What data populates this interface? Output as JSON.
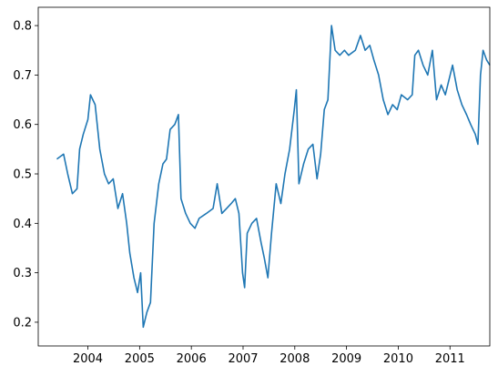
{
  "chart_data": {
    "type": "line",
    "x": [
      2003.4,
      2003.53,
      2003.61,
      2003.7,
      2003.79,
      2003.84,
      2003.91,
      2004.0,
      2004.05,
      2004.14,
      2004.23,
      2004.32,
      2004.4,
      2004.49,
      2004.58,
      2004.67,
      2004.75,
      2004.81,
      2004.89,
      2004.96,
      2005.02,
      2005.07,
      2005.14,
      2005.21,
      2005.28,
      2005.37,
      2005.45,
      2005.52,
      2005.59,
      2005.68,
      2005.75,
      2005.8,
      2005.89,
      2005.98,
      2006.07,
      2006.15,
      2006.29,
      2006.42,
      2006.5,
      2006.59,
      2006.68,
      2006.77,
      2006.85,
      2006.92,
      2006.99,
      2007.03,
      2007.08,
      2007.17,
      2007.26,
      2007.35,
      2007.41,
      2007.48,
      2007.55,
      2007.64,
      2007.73,
      2007.81,
      2007.9,
      2007.99,
      2008.03,
      2008.08,
      2008.17,
      2008.26,
      2008.35,
      2008.43,
      2008.5,
      2008.57,
      2008.64,
      2008.71,
      2008.78,
      2008.87,
      2008.96,
      2009.04,
      2009.17,
      2009.27,
      2009.36,
      2009.45,
      2009.53,
      2009.62,
      2009.71,
      2009.8,
      2009.89,
      2009.98,
      2010.06,
      2010.18,
      2010.27,
      2010.32,
      2010.39,
      2010.48,
      2010.57,
      2010.66,
      2010.74,
      2010.83,
      2010.91,
      2011.05,
      2011.14,
      2011.23,
      2011.32,
      2011.4,
      2011.49,
      2011.54,
      2011.59,
      2011.64,
      2011.71,
      2011.77
    ],
    "series": [
      {
        "color": "#1f77b4",
        "values": [
          0.53,
          0.54,
          0.5,
          0.46,
          0.47,
          0.55,
          0.58,
          0.61,
          0.66,
          0.64,
          0.55,
          0.5,
          0.48,
          0.49,
          0.43,
          0.46,
          0.4,
          0.34,
          0.29,
          0.26,
          0.3,
          0.19,
          0.22,
          0.24,
          0.4,
          0.48,
          0.52,
          0.53,
          0.59,
          0.6,
          0.62,
          0.45,
          0.42,
          0.4,
          0.39,
          0.41,
          0.42,
          0.43,
          0.48,
          0.42,
          0.43,
          0.44,
          0.45,
          0.42,
          0.3,
          0.27,
          0.38,
          0.4,
          0.41,
          0.36,
          0.33,
          0.29,
          0.38,
          0.48,
          0.44,
          0.5,
          0.55,
          0.63,
          0.67,
          0.48,
          0.52,
          0.55,
          0.56,
          0.49,
          0.54,
          0.63,
          0.65,
          0.8,
          0.75,
          0.74,
          0.75,
          0.74,
          0.75,
          0.78,
          0.75,
          0.76,
          0.73,
          0.7,
          0.65,
          0.62,
          0.64,
          0.63,
          0.66,
          0.65,
          0.66,
          0.74,
          0.75,
          0.72,
          0.7,
          0.75,
          0.65,
          0.68,
          0.66,
          0.72,
          0.67,
          0.64,
          0.62,
          0.6,
          0.58,
          0.56,
          0.7,
          0.75,
          0.73,
          0.72
        ]
      }
    ],
    "xlim": [
      2003.04,
      2011.77
    ],
    "xticks": [
      2004,
      2005,
      2006,
      2007,
      2008,
      2009,
      2010,
      2011
    ],
    "ylim": [
      0.152,
      0.837
    ],
    "yticks": [
      0.2,
      0.3,
      0.4,
      0.5,
      0.6,
      0.7,
      0.8
    ]
  }
}
